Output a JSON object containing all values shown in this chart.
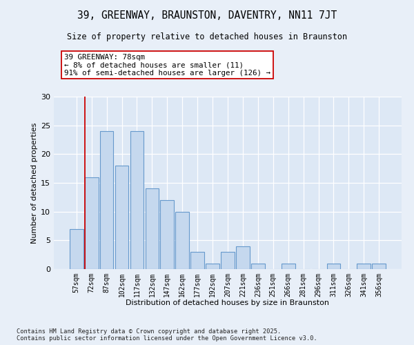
{
  "title1": "39, GREENWAY, BRAUNSTON, DAVENTRY, NN11 7JT",
  "title2": "Size of property relative to detached houses in Braunston",
  "xlabel": "Distribution of detached houses by size in Braunston",
  "ylabel": "Number of detached properties",
  "categories": [
    "57sqm",
    "72sqm",
    "87sqm",
    "102sqm",
    "117sqm",
    "132sqm",
    "147sqm",
    "162sqm",
    "177sqm",
    "192sqm",
    "207sqm",
    "221sqm",
    "236sqm",
    "251sqm",
    "266sqm",
    "281sqm",
    "296sqm",
    "311sqm",
    "326sqm",
    "341sqm",
    "356sqm"
  ],
  "values": [
    7,
    16,
    24,
    18,
    24,
    14,
    12,
    10,
    3,
    1,
    3,
    4,
    1,
    0,
    1,
    0,
    0,
    1,
    0,
    1,
    1
  ],
  "bar_color": "#c5d8ee",
  "bar_edge_color": "#6699cc",
  "annotation_title": "39 GREENWAY: 78sqm",
  "annotation_line1": "← 8% of detached houses are smaller (11)",
  "annotation_line2": "91% of semi-detached houses are larger (126) →",
  "bg_color": "#e8eff8",
  "plot_bg_color": "#dde8f5",
  "ylim": [
    0,
    30
  ],
  "yticks": [
    0,
    5,
    10,
    15,
    20,
    25,
    30
  ],
  "footer1": "Contains HM Land Registry data © Crown copyright and database right 2025.",
  "footer2": "Contains public sector information licensed under the Open Government Licence v3.0."
}
